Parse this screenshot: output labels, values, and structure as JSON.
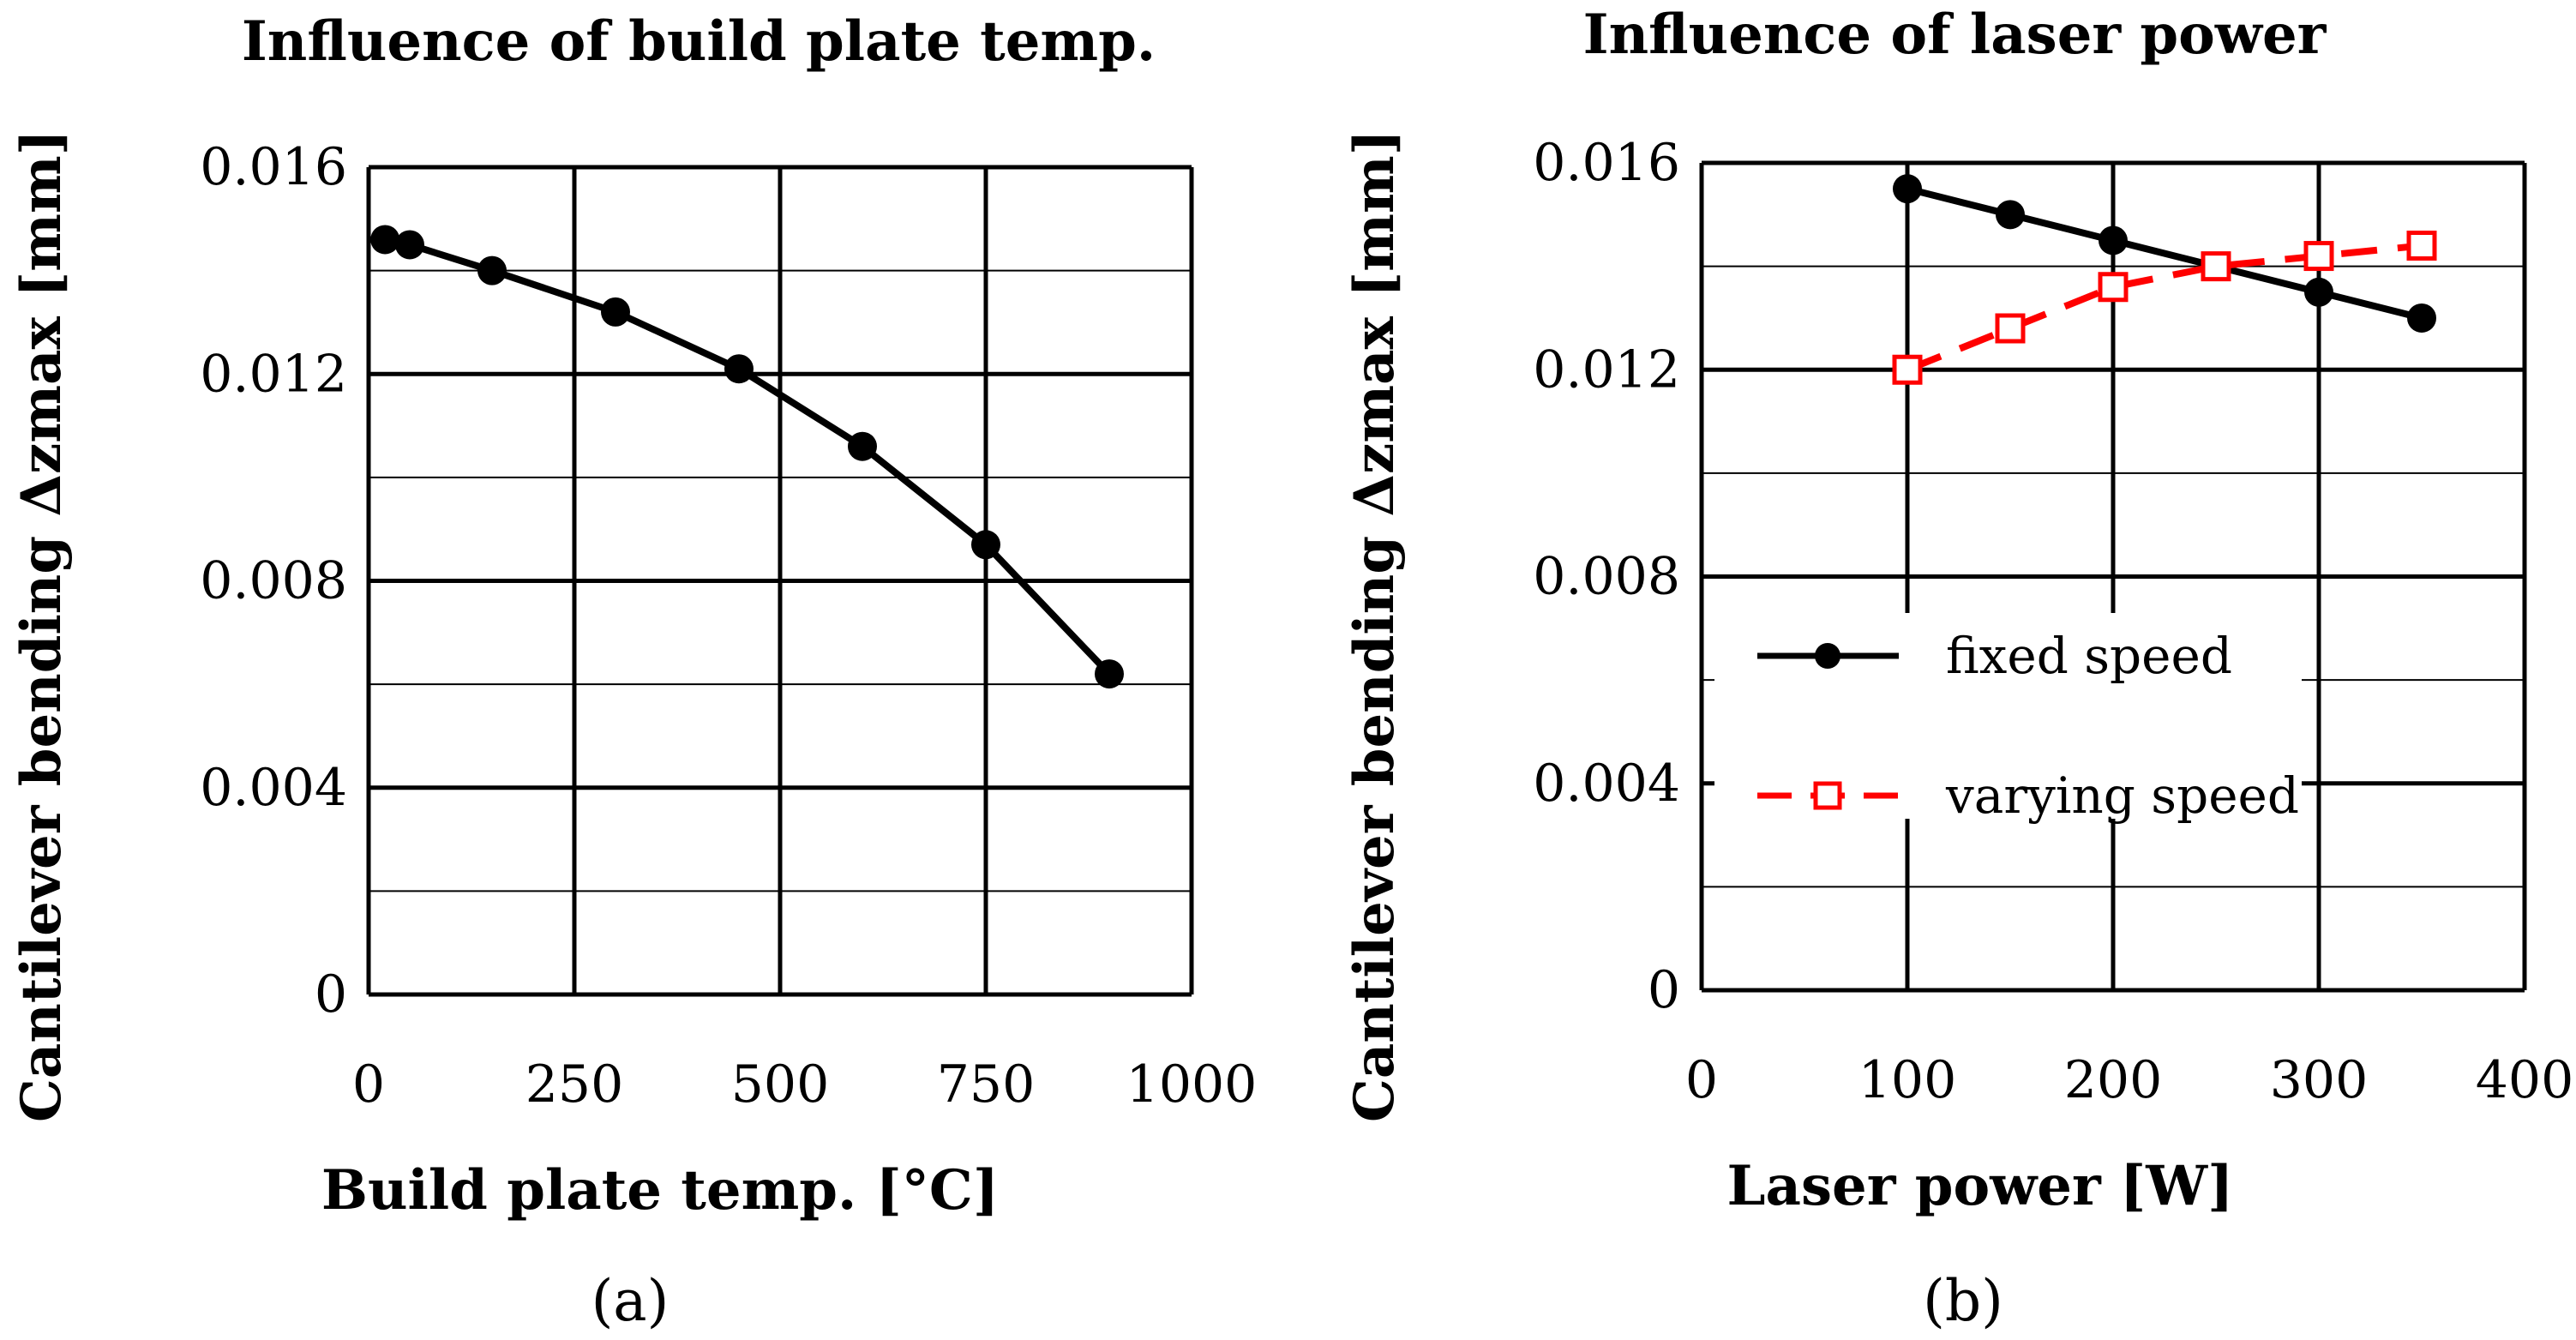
{
  "chart_data": [
    {
      "type": "line",
      "panel_label": "(a)",
      "title": "Influence of build plate temp.",
      "xlabel": "Build plate temp. [°C]",
      "ylabel": "Cantilever bending Δzmax [mm]",
      "xlim": [
        0,
        1000
      ],
      "ylim": [
        0,
        0.016
      ],
      "x_ticks": [
        "0",
        "250",
        "500",
        "750",
        "1000"
      ],
      "y_ticks": [
        "0",
        "0.004",
        "0.008",
        "0.012",
        "0.016"
      ],
      "grid": true,
      "series": [
        {
          "name": "build plate temp.",
          "color": "#000000",
          "marker": "filled-circle",
          "dash": "solid",
          "x": [
            20,
            50,
            150,
            300,
            450,
            600,
            750,
            900
          ],
          "y": [
            0.0146,
            0.0145,
            0.014,
            0.0132,
            0.0121,
            0.0106,
            0.0087,
            0.0062
          ]
        }
      ]
    },
    {
      "type": "line",
      "panel_label": "(b)",
      "title": "Influence of laser power",
      "xlabel": "Laser power [W]",
      "ylabel": "Cantilever bending Δzmax [mm]",
      "xlim": [
        0,
        400
      ],
      "ylim": [
        0,
        0.016
      ],
      "x_ticks": [
        "0",
        "100",
        "200",
        "300",
        "400"
      ],
      "y_ticks": [
        "0",
        "0.004",
        "0.008",
        "0.012",
        "0.016"
      ],
      "grid": true,
      "legend": "center-left",
      "series": [
        {
          "name": "fixed speed",
          "color": "#000000",
          "marker": "filled-circle",
          "dash": "solid",
          "x": [
            100,
            150,
            200,
            250,
            300,
            350
          ],
          "y": [
            0.0155,
            0.015,
            0.0145,
            0.014,
            0.0135,
            0.013
          ]
        },
        {
          "name": "varying speed",
          "color": "#ff0000",
          "marker": "open-square",
          "dash": "dashed",
          "x": [
            100,
            150,
            200,
            250,
            300,
            350
          ],
          "y": [
            0.012,
            0.0128,
            0.0136,
            0.014,
            0.0142,
            0.0144
          ]
        }
      ]
    }
  ]
}
